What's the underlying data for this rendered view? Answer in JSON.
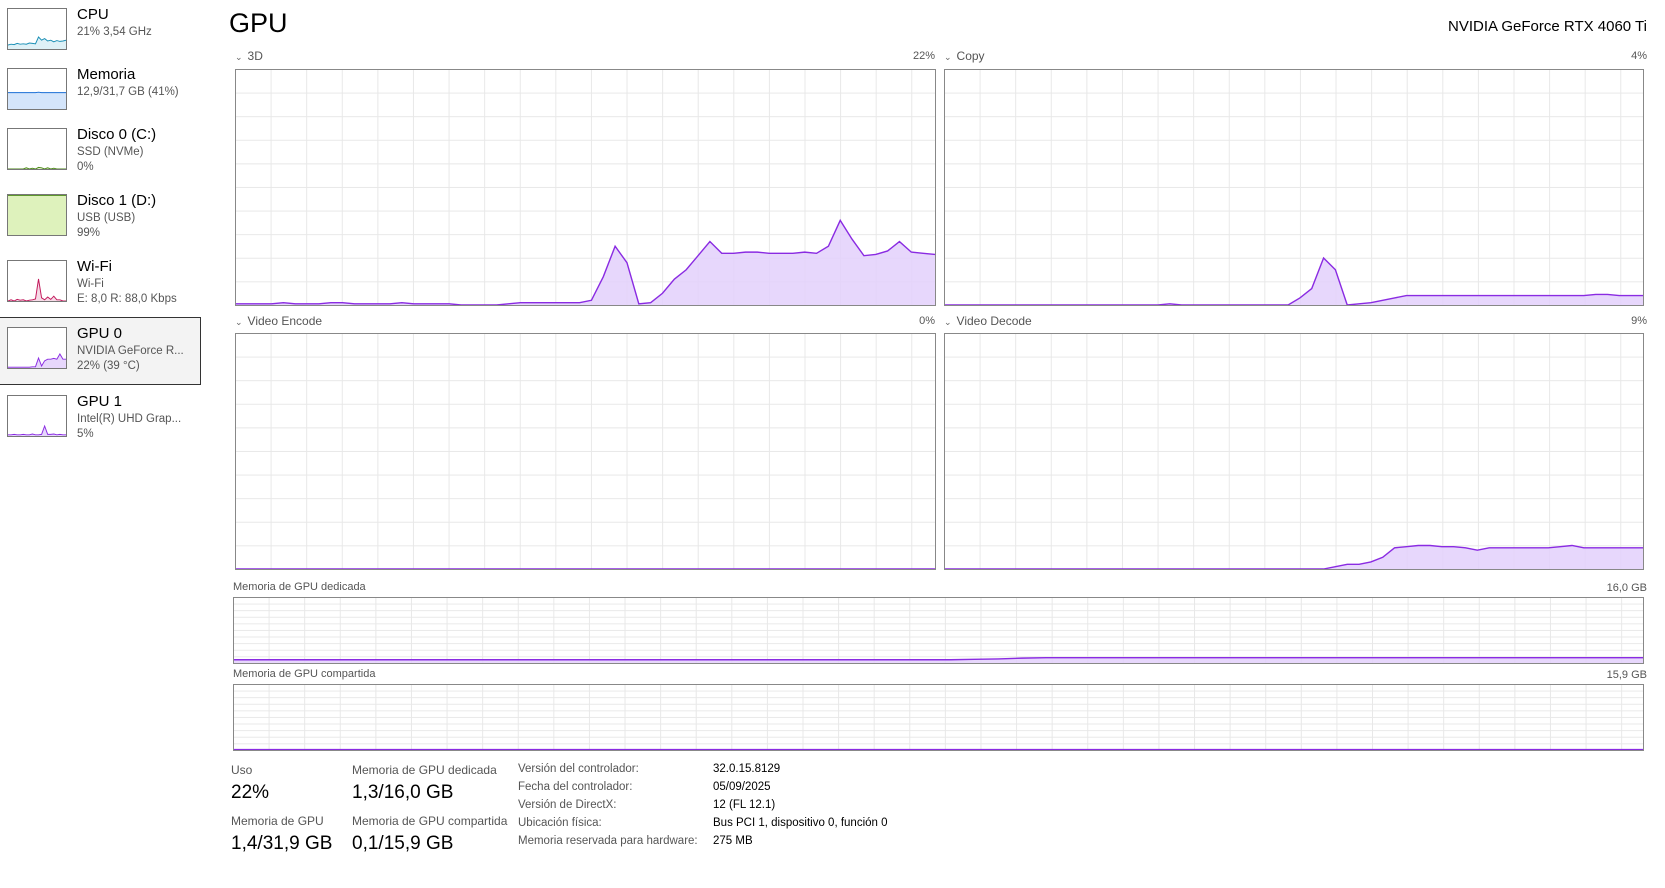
{
  "sidebar": {
    "items": [
      {
        "name": "CPU",
        "sub1": "21% 3,54 GHz",
        "sub2": "",
        "color": "#1a8fb5",
        "fill": "#d8eef6",
        "thumb": [
          10,
          12,
          11,
          14,
          12,
          13,
          12,
          15,
          14,
          13,
          30,
          22,
          26,
          20,
          22,
          18,
          21,
          19,
          20,
          22
        ]
      },
      {
        "name": "Memoria",
        "sub1": "12,9/31,7 GB (41%)",
        "sub2": "",
        "color": "#1a6fd6",
        "fill": "#cce0fa",
        "thumb": [
          41,
          41,
          41,
          41,
          41,
          41,
          41,
          41,
          41,
          41,
          42,
          41,
          41,
          41,
          41,
          41,
          41,
          41,
          41,
          41
        ]
      },
      {
        "name": "Disco 0 (C:)",
        "sub1": "SSD (NVMe)",
        "sub2": "0%",
        "color": "#4d8a1a",
        "fill": "#e0f0c8",
        "thumb": [
          0,
          0,
          0,
          0,
          0,
          0,
          3,
          0,
          2,
          0,
          4,
          3,
          0,
          3,
          0,
          2,
          0,
          0,
          0,
          0
        ]
      },
      {
        "name": "Disco 1 (D:)",
        "sub1": "USB (USB)",
        "sub2": "99%",
        "color": "#4d8a1a",
        "fill": "#d8f0b0",
        "thumb": [
          99,
          99,
          99,
          99,
          99,
          99,
          99,
          99,
          99,
          99,
          99,
          99,
          99,
          99,
          99,
          99,
          99,
          99,
          99,
          99
        ]
      },
      {
        "name": "Wi-Fi",
        "sub1": "Wi-Fi",
        "sub2": "E: 8,0 R: 88,0 Kbps",
        "color": "#c2185b",
        "fill": "#f4d4e2",
        "thumb": [
          0,
          3,
          0,
          4,
          2,
          3,
          0,
          2,
          3,
          5,
          55,
          8,
          3,
          10,
          4,
          12,
          3,
          3,
          0,
          0
        ]
      },
      {
        "name": "GPU 0",
        "sub1": "NVIDIA GeForce R...",
        "sub2": "22% (39 °C)",
        "color": "#8a2be2",
        "fill": "#e3d0fc",
        "thumb": [
          2,
          2,
          2,
          2,
          2,
          2,
          2,
          2,
          3,
          3,
          25,
          5,
          18,
          22,
          22,
          24,
          22,
          35,
          22,
          22
        ]
      },
      {
        "name": "GPU 1",
        "sub1": "Intel(R) UHD Grap...",
        "sub2": "5%",
        "color": "#8a2be2",
        "fill": "#e3d0fc",
        "thumb": [
          3,
          3,
          4,
          3,
          3,
          4,
          3,
          3,
          5,
          3,
          3,
          4,
          25,
          4,
          4,
          5,
          3,
          4,
          3,
          3
        ]
      }
    ]
  },
  "header": {
    "title": "GPU",
    "device": "NVIDIA GeForce RTX 4060 Ti"
  },
  "colors": {
    "line": "#8a2be2",
    "fill": "#e3d0fc"
  },
  "chart_data": [
    {
      "type": "area",
      "name": "3D",
      "value_label": "22%",
      "ylim": [
        0,
        100
      ],
      "values": [
        0.5,
        0.5,
        0.5,
        0.5,
        1,
        0.5,
        0.5,
        0.5,
        1,
        1,
        0.5,
        0.5,
        0.5,
        0.5,
        1,
        0.5,
        0.5,
        0.5,
        0.5,
        0,
        0,
        0,
        0,
        0.5,
        1,
        1,
        1,
        1,
        1,
        1,
        2,
        12,
        25,
        18,
        0.5,
        1,
        5,
        11,
        15,
        21,
        27,
        22,
        22,
        22.5,
        22.5,
        22,
        22,
        22,
        22.5,
        22,
        25,
        36,
        28,
        21,
        21.5,
        23,
        27,
        22.5,
        22,
        21.5
      ]
    },
    {
      "type": "area",
      "name": "Copy",
      "value_label": "4%",
      "ylim": [
        0,
        100
      ],
      "values": [
        0,
        0,
        0,
        0,
        0,
        0,
        0,
        0,
        0,
        0,
        0,
        0,
        0,
        0,
        0,
        0,
        0,
        0,
        0,
        0.5,
        0,
        0,
        0,
        0,
        0,
        0,
        0,
        0,
        0,
        0,
        3,
        7,
        20,
        15,
        0,
        0.5,
        1,
        2,
        3,
        4,
        4,
        4,
        4,
        4,
        4,
        4,
        4,
        4,
        4,
        4,
        4,
        4,
        4,
        4,
        4,
        4.5,
        4.5,
        4,
        4,
        4
      ]
    },
    {
      "type": "area",
      "name": "Video Encode",
      "value_label": "0%",
      "ylim": [
        0,
        100
      ],
      "values": [
        0,
        0,
        0,
        0,
        0,
        0,
        0,
        0,
        0,
        0,
        0,
        0,
        0,
        0,
        0,
        0,
        0,
        0,
        0,
        0,
        0,
        0,
        0,
        0,
        0,
        0,
        0,
        0,
        0,
        0,
        0,
        0,
        0,
        0,
        0,
        0,
        0,
        0,
        0,
        0,
        0,
        0,
        0,
        0,
        0,
        0,
        0,
        0,
        0,
        0,
        0,
        0,
        0,
        0,
        0,
        0,
        0,
        0,
        0,
        0
      ]
    },
    {
      "type": "area",
      "name": "Video Decode",
      "value_label": "9%",
      "ylim": [
        0,
        100
      ],
      "values": [
        0,
        0,
        0,
        0,
        0,
        0,
        0,
        0,
        0,
        0,
        0,
        0,
        0,
        0,
        0,
        0,
        0,
        0,
        0,
        0,
        0,
        0,
        0,
        0,
        0,
        0,
        0,
        0,
        0,
        0,
        0,
        0,
        0,
        1,
        2,
        2,
        3,
        5,
        9,
        9.5,
        10,
        10,
        9.5,
        9.5,
        9,
        8,
        9,
        9,
        9,
        9,
        9,
        9,
        9.5,
        10,
        9,
        9,
        9,
        9,
        9,
        9
      ]
    },
    {
      "type": "area",
      "name": "Memoria de GPU dedicada",
      "value_label": "16,0 GB",
      "ylim": [
        0,
        16
      ],
      "values": [
        0.8,
        0.8,
        0.8,
        0.8,
        0.8,
        0.8,
        0.8,
        0.8,
        0.8,
        0.8,
        0.8,
        0.8,
        0.8,
        0.8,
        0.8,
        0.8,
        0.8,
        0.8,
        0.8,
        0.8,
        0.8,
        0.8,
        0.8,
        0.8,
        0.8,
        0.8,
        0.8,
        0.8,
        0.8,
        0.8,
        0.8,
        0.9,
        1.0,
        1.2,
        1.3,
        1.3,
        1.3,
        1.3,
        1.3,
        1.3,
        1.3,
        1.3,
        1.3,
        1.3,
        1.3,
        1.3,
        1.3,
        1.3,
        1.3,
        1.3,
        1.3,
        1.3,
        1.3,
        1.3,
        1.3,
        1.3,
        1.3,
        1.3,
        1.3,
        1.3
      ]
    },
    {
      "type": "area",
      "name": "Memoria de GPU compartida",
      "value_label": "15,9 GB",
      "ylim": [
        0,
        15.9
      ],
      "values": [
        0.1,
        0.1,
        0.1,
        0.1,
        0.1,
        0.1,
        0.1,
        0.1,
        0.1,
        0.1,
        0.1,
        0.1,
        0.1,
        0.1,
        0.1,
        0.1,
        0.1,
        0.1,
        0.1,
        0.1,
        0.1,
        0.1,
        0.1,
        0.1,
        0.1,
        0.1,
        0.1,
        0.1,
        0.1,
        0.1,
        0.1,
        0.1,
        0.1,
        0.1,
        0.1,
        0.1,
        0.1,
        0.1,
        0.1,
        0.1,
        0.1,
        0.1,
        0.1,
        0.1,
        0.1,
        0.1,
        0.1,
        0.1,
        0.1,
        0.1,
        0.1,
        0.1,
        0.1,
        0.1,
        0.1,
        0.1,
        0.1,
        0.1,
        0.1,
        0.1
      ]
    }
  ],
  "stats": {
    "uso_label": "Uso",
    "uso": "22%",
    "ded_label": "Memoria de GPU dedicada",
    "ded": "1,3/16,0 GB",
    "gpu_mem_label": "Memoria de GPU",
    "gpu_mem": "1,4/31,9 GB",
    "shared_label": "Memoria de GPU compartida",
    "shared": "0,1/15,9 GB"
  },
  "details": [
    {
      "label": "Versión del controlador:",
      "value": "32.0.15.8129"
    },
    {
      "label": "Fecha del controlador:",
      "value": "05/09/2025"
    },
    {
      "label": "Versión de DirectX:",
      "value": "12 (FL 12.1)"
    },
    {
      "label": "Ubicación física:",
      "value": "Bus PCI 1, dispositivo 0, función 0"
    },
    {
      "label": "Memoria reservada para hardware:",
      "value": "275 MB"
    }
  ]
}
